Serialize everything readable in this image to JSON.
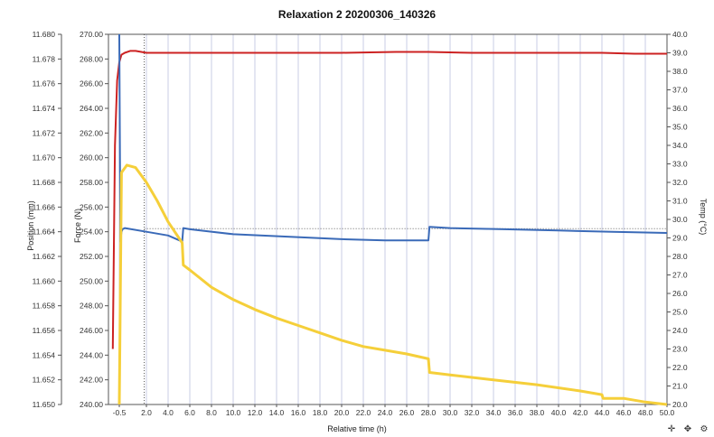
{
  "chart_data": {
    "type": "line",
    "title": "Relaxation 2  20200306_140326",
    "xlabel": "Relative time (h)",
    "xlim": [
      -1.5,
      50.0
    ],
    "x_ticks": [
      "-0.5",
      "2.0",
      "4.0",
      "6.0",
      "8.0",
      "10.0",
      "12.0",
      "14.0",
      "16.0",
      "18.0",
      "20.0",
      "22.0",
      "24.0",
      "26.0",
      "28.0",
      "30.0",
      "32.0",
      "34.0",
      "36.0",
      "38.0",
      "40.0",
      "42.0",
      "44.0",
      "46.0",
      "48.0",
      "50.0"
    ],
    "axes": {
      "position": {
        "label": "Position (mm)",
        "lim": [
          11.65,
          11.68
        ],
        "ticks": [
          "11.680",
          "11.678",
          "11.676",
          "11.674",
          "11.672",
          "11.670",
          "11.668",
          "11.666",
          "11.664",
          "11.662",
          "11.660",
          "11.658",
          "11.656",
          "11.654",
          "11.652",
          "11.650"
        ]
      },
      "force": {
        "label": "Force (N)",
        "lim": [
          240.0,
          270.0
        ],
        "ticks": [
          "270.00",
          "268.00",
          "266.00",
          "264.00",
          "262.00",
          "260.00",
          "258.00",
          "256.00",
          "254.00",
          "252.00",
          "250.00",
          "248.00",
          "246.00",
          "244.00",
          "242.00",
          "240.00"
        ]
      },
      "temp": {
        "label": "Temp (°C)",
        "lim": [
          20.0,
          40.0
        ],
        "ticks": [
          "40.0",
          "39.0",
          "38.0",
          "37.0",
          "36.0",
          "35.0",
          "34.0",
          "33.0",
          "32.0",
          "31.0",
          "30.0",
          "29.0",
          "28.0",
          "27.0",
          "26.0",
          "25.0",
          "24.0",
          "23.0",
          "22.0",
          "21.0",
          "20.0"
        ]
      }
    },
    "grid": true,
    "vertical_marker_x": 1.8,
    "horizontal_reference_temp": 29.5,
    "series": [
      {
        "axis": "temp",
        "color": "#cc2222",
        "x": [
          -1.1,
          -0.9,
          -0.7,
          -0.5,
          -0.3,
          0.0,
          0.5,
          1.0,
          2.0,
          5.0,
          10.0,
          15.0,
          20.0,
          25.0,
          28.0,
          32.0,
          36.0,
          40.0,
          44.0,
          47.0,
          50.0
        ],
        "y": [
          23.0,
          34.0,
          37.5,
          38.5,
          38.9,
          39.0,
          39.1,
          39.1,
          39.0,
          39.0,
          39.0,
          39.0,
          39.0,
          39.05,
          39.05,
          39.0,
          39.0,
          39.0,
          39.0,
          38.95,
          38.95
        ]
      },
      {
        "axis": "position",
        "color": "#3a6ab8",
        "x": [
          -0.5,
          -0.4,
          -0.3,
          -0.2,
          0.0,
          2.0,
          4.0,
          5.3,
          5.4,
          6.0,
          10.0,
          15.0,
          20.0,
          24.0,
          28.0,
          28.1,
          30.0,
          35.0,
          40.0,
          45.0,
          50.0
        ],
        "y": [
          11.68,
          11.6632,
          11.664,
          11.6642,
          11.6643,
          11.664,
          11.6637,
          11.6632,
          11.6643,
          11.6642,
          11.6638,
          11.6636,
          11.6634,
          11.6633,
          11.6633,
          11.6644,
          11.6643,
          11.6642,
          11.6641,
          11.664,
          11.6639
        ]
      },
      {
        "axis": "force",
        "color": "#f5cf3a",
        "x": [
          -0.5,
          -0.3,
          0.2,
          1.0,
          2.0,
          3.0,
          4.0,
          5.3,
          5.4,
          6.0,
          8.0,
          10.0,
          12.0,
          14.0,
          16.0,
          18.0,
          20.0,
          22.0,
          24.0,
          26.0,
          28.0,
          28.1,
          30.0,
          34.0,
          38.0,
          42.0,
          44.0,
          44.1,
          46.0,
          48.0,
          50.0
        ],
        "y": [
          240.0,
          258.8,
          259.4,
          259.2,
          258.0,
          256.5,
          254.8,
          253.1,
          251.3,
          250.9,
          249.5,
          248.5,
          247.7,
          247.0,
          246.4,
          245.8,
          245.2,
          244.7,
          244.4,
          244.1,
          243.7,
          242.6,
          242.4,
          242.0,
          241.6,
          241.1,
          240.8,
          240.5,
          240.5,
          240.2,
          240.0
        ]
      }
    ]
  },
  "toolbar": {
    "zoom_icon": "crosshair-icon",
    "pan_icon": "pan-icon",
    "settings_icon": "settings-icon"
  }
}
